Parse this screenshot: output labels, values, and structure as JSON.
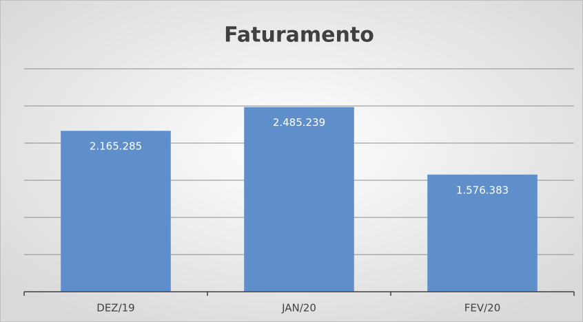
{
  "chart_data": {
    "type": "bar",
    "title": "Faturamento",
    "categories": [
      "DEZ/19",
      "JAN/20",
      "FEV/20"
    ],
    "values": [
      2165285,
      2485239,
      1576383
    ],
    "value_labels": [
      "2.165.285",
      "2.485.239",
      "1.576.383"
    ],
    "color": "#5f8fca",
    "ylim": [
      0,
      3000000
    ],
    "yticks": [
      0,
      500000,
      1000000,
      1500000,
      2000000,
      2500000,
      3000000
    ],
    "grid": true
  }
}
